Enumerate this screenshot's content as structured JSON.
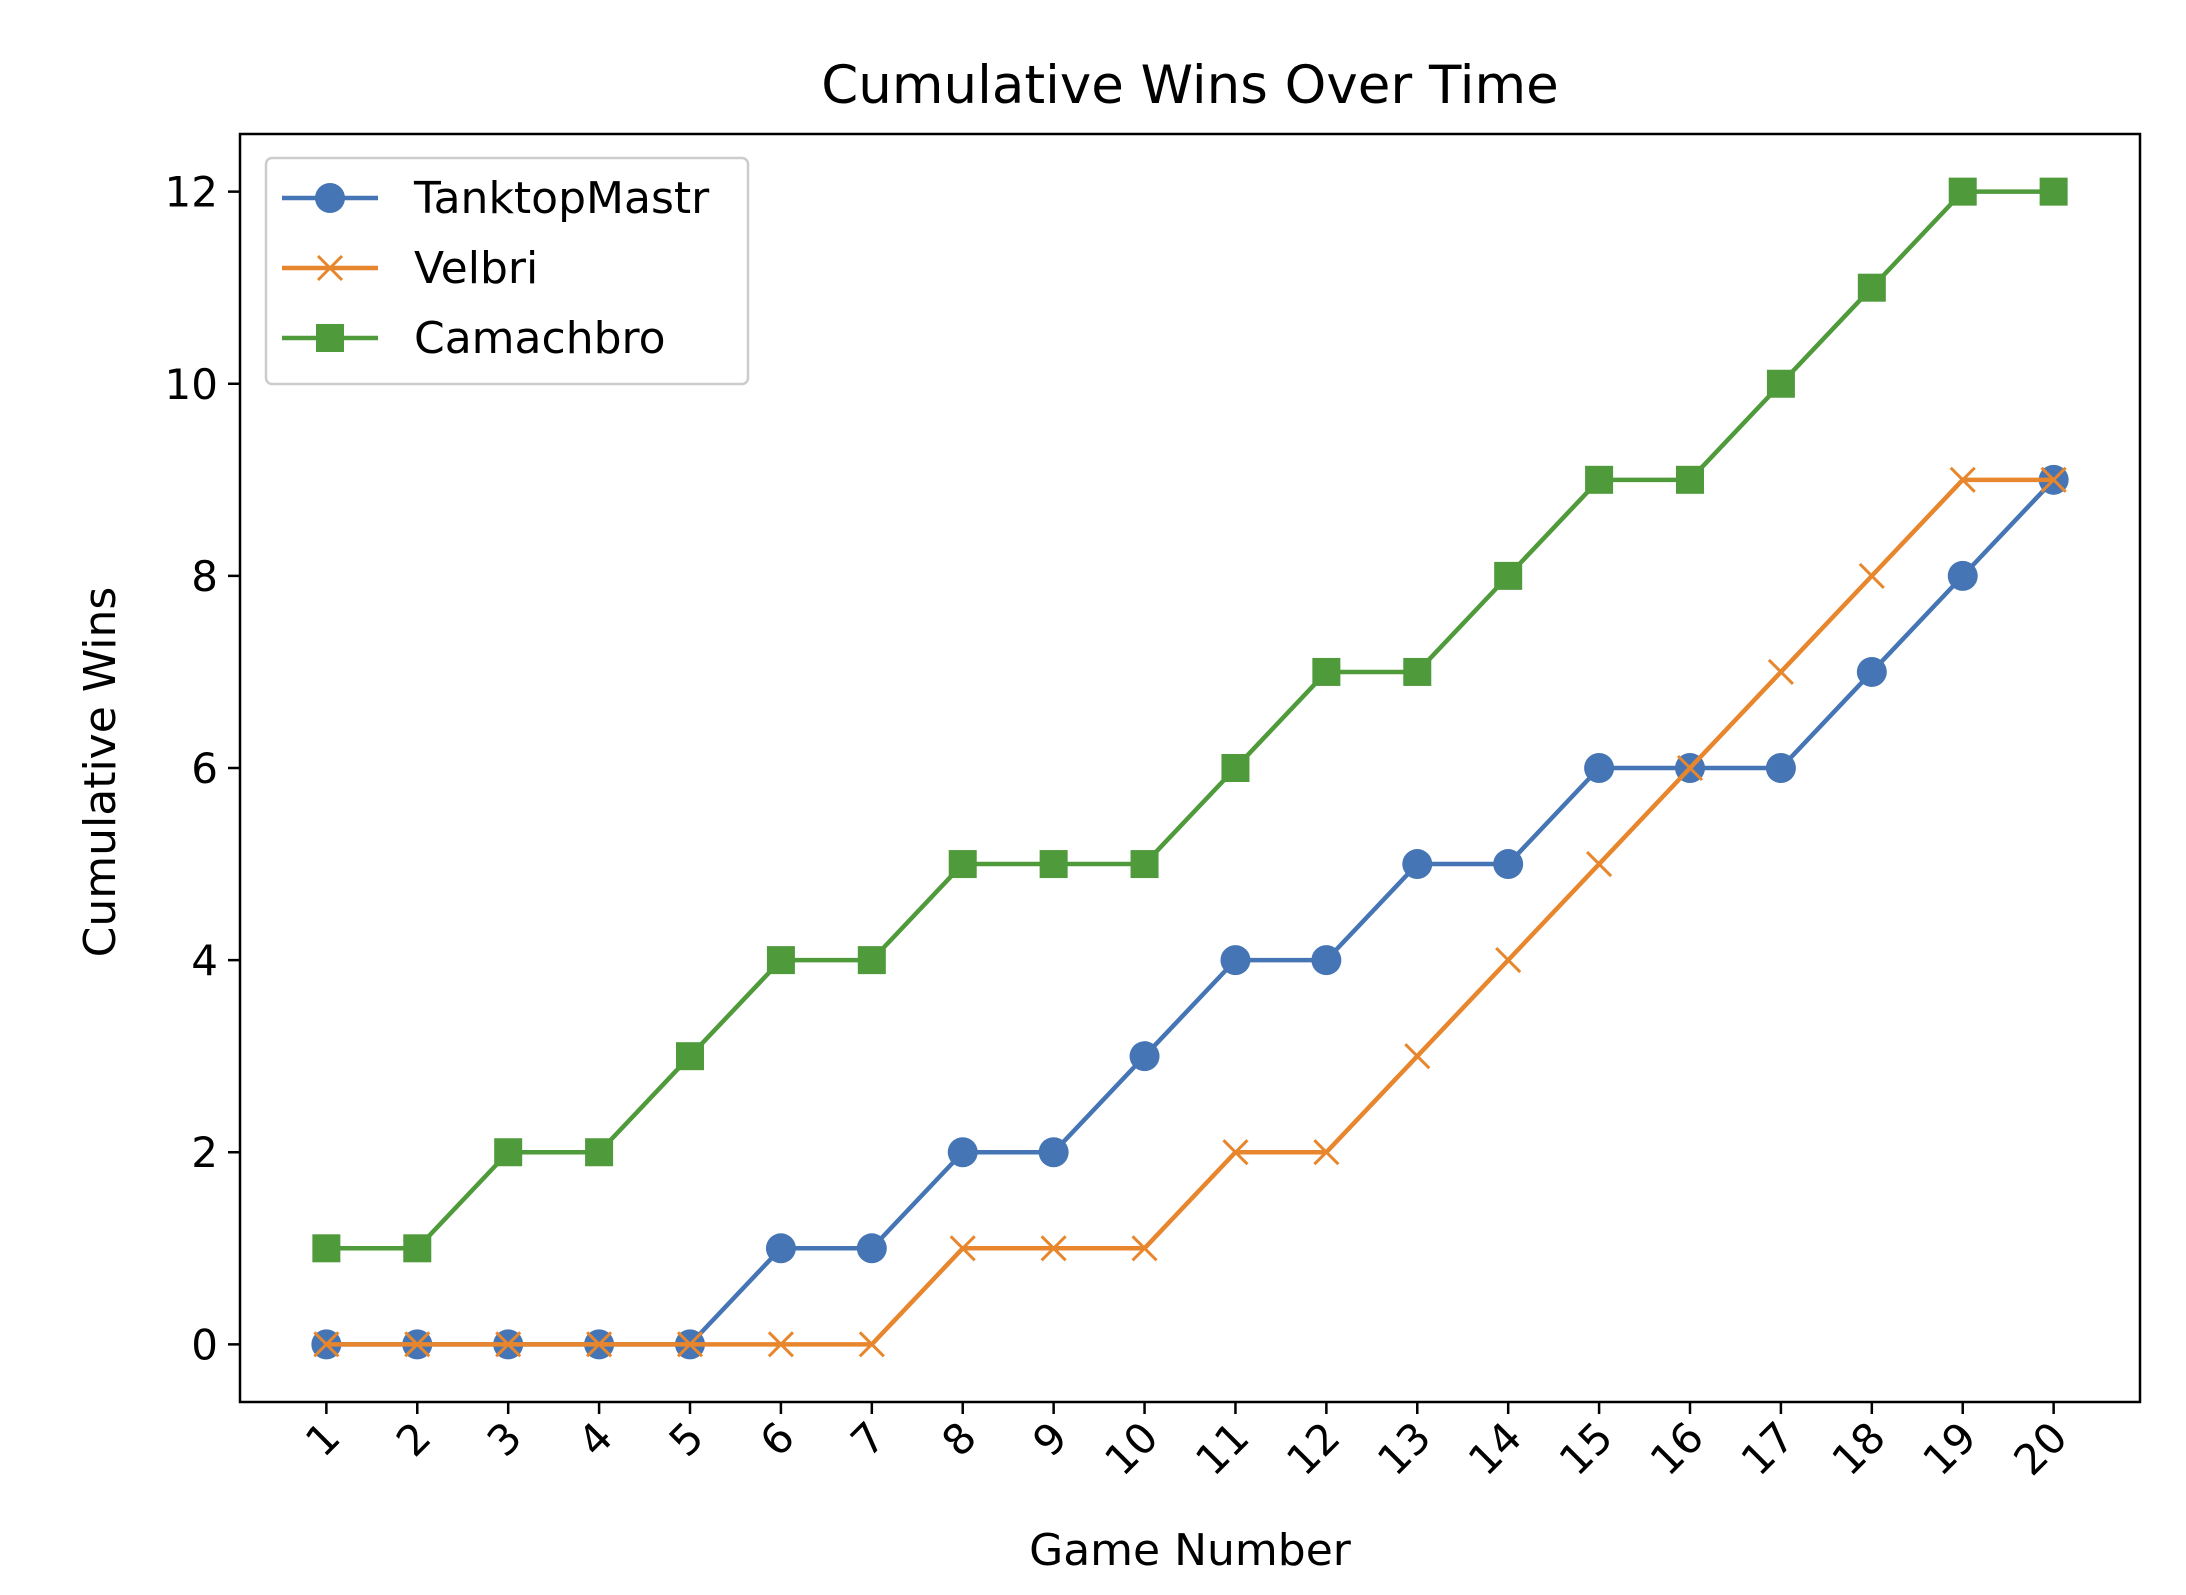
{
  "chart_data": {
    "type": "line",
    "title": "Cumulative Wins Over Time",
    "xlabel": "Game Number",
    "ylabel": "Cumulative Wins",
    "x": [
      1,
      2,
      3,
      4,
      5,
      6,
      7,
      8,
      9,
      10,
      11,
      12,
      13,
      14,
      15,
      16,
      17,
      18,
      19,
      20
    ],
    "xlim": [
      0.05,
      20.95
    ],
    "ylim": [
      -0.6,
      12.6
    ],
    "yticks": [
      0,
      2,
      4,
      6,
      8,
      10,
      12
    ],
    "grid": false,
    "legend_position": "top-left",
    "series": [
      {
        "name": "TanktopMastr",
        "color": "#4575b4",
        "marker": "circle",
        "values": [
          0,
          0,
          0,
          0,
          0,
          1,
          1,
          2,
          2,
          3,
          4,
          4,
          5,
          5,
          6,
          6,
          6,
          7,
          8,
          9
        ]
      },
      {
        "name": "Velbri",
        "color": "#e8862e",
        "marker": "x",
        "values": [
          0,
          0,
          0,
          0,
          0,
          0,
          0,
          1,
          1,
          1,
          2,
          2,
          3,
          4,
          5,
          6,
          7,
          8,
          9,
          9
        ]
      },
      {
        "name": "Camachbro",
        "color": "#4f9a3a",
        "marker": "square",
        "values": [
          1,
          1,
          2,
          2,
          3,
          4,
          4,
          5,
          5,
          5,
          6,
          7,
          7,
          8,
          9,
          9,
          10,
          11,
          12,
          12
        ]
      }
    ]
  }
}
